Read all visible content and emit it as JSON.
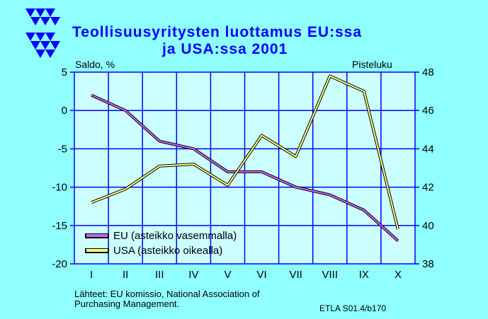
{
  "title_line1": "Teollisuusyritysten  luottamus  EU:ssa",
  "title_line2": "ja  USA:ssa  2001",
  "left_axis_caption": "Saldo, %",
  "right_axis_caption": "Pisteluku",
  "source_line1": "Lähteet:   EU komissio, National Association of",
  "source_line2": "Purchasing Management.",
  "code": "ETLA S01.4/b170",
  "colors": {
    "background": "#8fffff",
    "plot_bg": "#ccffff",
    "grid": "#0000ff",
    "eu": "#cc66ff",
    "usa": "#ffff80",
    "title": "#0000ff",
    "logo": "#0000ff"
  },
  "chart_data": {
    "type": "line",
    "categories": [
      "I",
      "II",
      "III",
      "IV",
      "V",
      "VI",
      "VII",
      "VIII",
      "IX",
      "X"
    ],
    "y_left": {
      "label": "Saldo, %",
      "ylim": [
        -20,
        5
      ],
      "ticks": [
        5,
        0,
        -5,
        -10,
        -15,
        -20
      ]
    },
    "y_right": {
      "label": "Pisteluku",
      "ylim": [
        38,
        48
      ],
      "ticks": [
        48,
        46,
        44,
        42,
        40,
        38
      ]
    },
    "grid": true,
    "legend_position": "bottom-left",
    "series": [
      {
        "name": "EU (asteikko vasemmalla)",
        "axis": "left",
        "values": [
          2,
          0,
          -4,
          -5,
          -8,
          -8,
          -10,
          -11,
          -13,
          -17
        ]
      },
      {
        "name": "USA (asteikko oikealla)",
        "axis": "right",
        "values": [
          41.2,
          41.9,
          43.1,
          43.2,
          42.1,
          44.7,
          43.6,
          47.8,
          47.0,
          39.8
        ]
      }
    ]
  }
}
